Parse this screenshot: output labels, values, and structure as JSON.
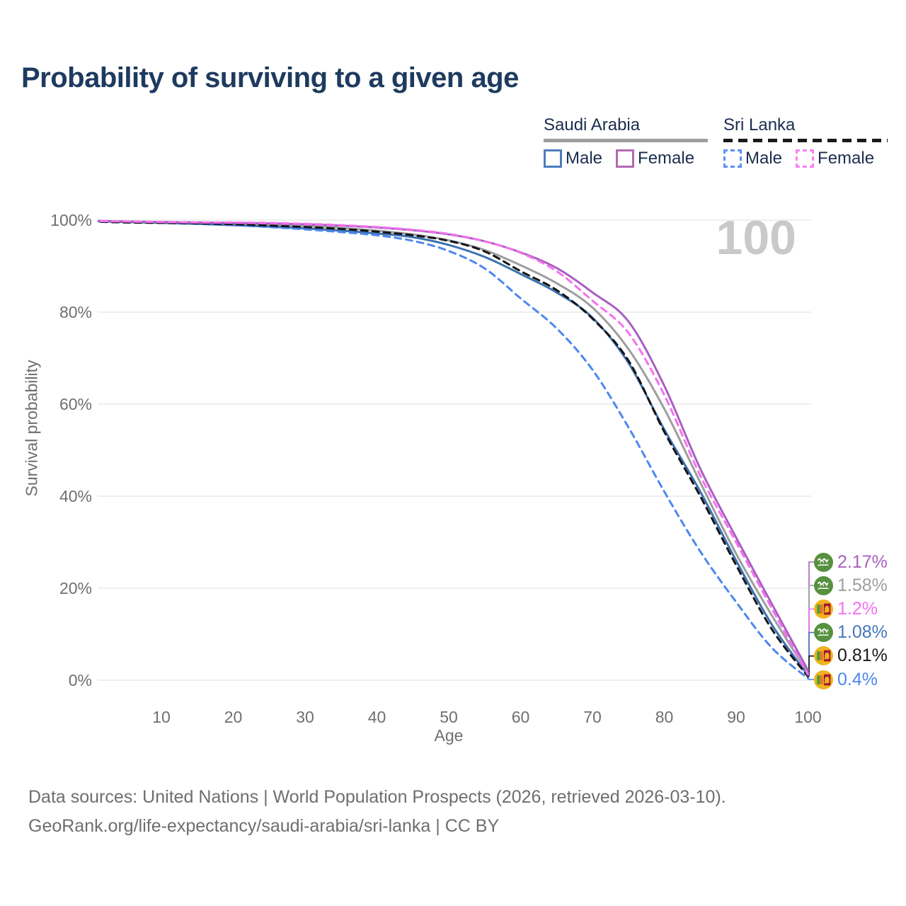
{
  "header": {
    "title": "Probability of surviving to a given age",
    "title_color": "#1e3a5f"
  },
  "legend": {
    "groups": [
      {
        "name": "Saudi Arabia",
        "line_style": "solid",
        "line_color": "#9e9e9e",
        "items": [
          {
            "label": "Male",
            "swatch_color": "#4d7dbf",
            "swatch_style": "solid"
          },
          {
            "label": "Female",
            "swatch_color": "#b36ab0",
            "swatch_style": "solid"
          }
        ]
      },
      {
        "name": "Sri Lanka",
        "line_style": "dashed",
        "line_color": "#1a1a1a",
        "items": [
          {
            "label": "Male",
            "swatch_color": "#5b8ff9",
            "swatch_style": "dashed"
          },
          {
            "label": "Female",
            "swatch_color": "#fb80f4",
            "swatch_style": "dashed"
          }
        ]
      }
    ]
  },
  "watermark": "100",
  "chart_data": {
    "type": "line",
    "title": "Probability of surviving to a given age",
    "xlabel": "Age",
    "ylabel": "Survival probability",
    "xlim": [
      0,
      100
    ],
    "ylim": [
      0,
      100
    ],
    "grid": "horizontal",
    "legend_position": "top-right",
    "x_ticks": [
      10,
      20,
      30,
      40,
      50,
      60,
      70,
      80,
      90,
      100
    ],
    "y_ticks": [
      {
        "value": 0,
        "label": "0%"
      },
      {
        "value": 20,
        "label": "20%"
      },
      {
        "value": 40,
        "label": "40%"
      },
      {
        "value": 60,
        "label": "60%"
      },
      {
        "value": 80,
        "label": "80%"
      },
      {
        "value": 100,
        "label": "100%"
      }
    ],
    "x": [
      0,
      5,
      10,
      15,
      20,
      25,
      30,
      35,
      40,
      45,
      50,
      55,
      60,
      65,
      70,
      75,
      80,
      85,
      90,
      95,
      100
    ],
    "series": [
      {
        "name": "Saudi Arabia — Female",
        "country": "Saudi Arabia",
        "sex": "Female",
        "color": "#a860c0",
        "dash": false,
        "end_value": "2.17%",
        "values": [
          99.9,
          99.7,
          99.6,
          99.5,
          99.4,
          99.3,
          99.1,
          98.8,
          98.4,
          97.8,
          96.9,
          95.4,
          93.0,
          89.6,
          84.3,
          78.0,
          64.0,
          46.0,
          31.0,
          16.5,
          2.17
        ]
      },
      {
        "name": "Saudi Arabia — Both sexes",
        "country": "Saudi Arabia",
        "sex": "Both",
        "color": "#9e9e9e",
        "dash": false,
        "end_value": "1.58%",
        "values": [
          99.8,
          99.6,
          99.5,
          99.4,
          99.2,
          99.0,
          98.7,
          98.3,
          97.7,
          96.9,
          95.6,
          93.5,
          90.2,
          86.3,
          81.0,
          72.0,
          59.0,
          43.0,
          27.5,
          14.0,
          1.58
        ]
      },
      {
        "name": "Saudi Arabia — Male",
        "country": "Saudi Arabia",
        "sex": "Male",
        "color": "#3c70ae",
        "dash": false,
        "end_value": "1.08%",
        "values": [
          99.8,
          99.6,
          99.4,
          99.2,
          98.9,
          98.6,
          98.2,
          97.7,
          97.1,
          96.3,
          94.6,
          92.0,
          88.3,
          84.3,
          78.8,
          69.0,
          54.5,
          41.0,
          26.0,
          12.0,
          1.08
        ]
      },
      {
        "name": "Sri Lanka — Both sexes",
        "country": "Sri Lanka",
        "sex": "Both",
        "color": "#141414",
        "dash": true,
        "end_value": "0.81%",
        "values": [
          99.7,
          99.5,
          99.4,
          99.3,
          99.1,
          98.8,
          98.5,
          98.1,
          97.5,
          96.7,
          95.5,
          93.2,
          88.9,
          84.8,
          78.6,
          69.5,
          54.0,
          40.0,
          25.0,
          11.0,
          0.81
        ]
      },
      {
        "name": "Sri Lanka — Male",
        "country": "Sri Lanka",
        "sex": "Male",
        "color": "#4c87f0",
        "dash": true,
        "end_value": "0.4%",
        "values": [
          99.7,
          99.5,
          99.4,
          99.2,
          98.9,
          98.5,
          98.0,
          97.4,
          96.7,
          95.5,
          93.3,
          89.5,
          83.0,
          76.5,
          67.5,
          55.0,
          41.0,
          28.0,
          17.0,
          7.0,
          0.4
        ]
      },
      {
        "name": "Sri Lanka — Female",
        "country": "Sri Lanka",
        "sex": "Female",
        "color": "#f570ee",
        "dash": true,
        "end_value": "1.2%",
        "values": [
          99.8,
          99.7,
          99.6,
          99.5,
          99.5,
          99.4,
          99.2,
          98.9,
          98.5,
          97.9,
          97.0,
          95.4,
          92.9,
          88.9,
          82.5,
          75.5,
          62.0,
          44.5,
          30.0,
          15.5,
          1.2
        ]
      }
    ],
    "end_labels": [
      {
        "flag": "saudi-arabia",
        "text": "2.17%",
        "color": "#a860c0",
        "series": "Saudi Arabia — Female"
      },
      {
        "flag": "saudi-arabia",
        "text": "1.58%",
        "color": "#9e9e9e",
        "series": "Saudi Arabia — Both sexes"
      },
      {
        "flag": "sri-lanka",
        "text": "1.2%",
        "color": "#f570ee",
        "series": "Sri Lanka — Female"
      },
      {
        "flag": "saudi-arabia",
        "text": "1.08%",
        "color": "#4577bd",
        "series": "Saudi Arabia — Male"
      },
      {
        "flag": "sri-lanka",
        "text": "0.81%",
        "color": "#1a1a1a",
        "series": "Sri Lanka — Both sexes"
      },
      {
        "flag": "sri-lanka",
        "text": "0.4%",
        "color": "#4c87f0",
        "series": "Sri Lanka — Male"
      }
    ]
  },
  "footer": {
    "line1": "Data sources: United Nations | World Population Prospects (2026, retrieved 2026-03-10).",
    "line2": "GeoRank.org/life-expectancy/saudi-arabia/sri-lanka | CC BY"
  }
}
